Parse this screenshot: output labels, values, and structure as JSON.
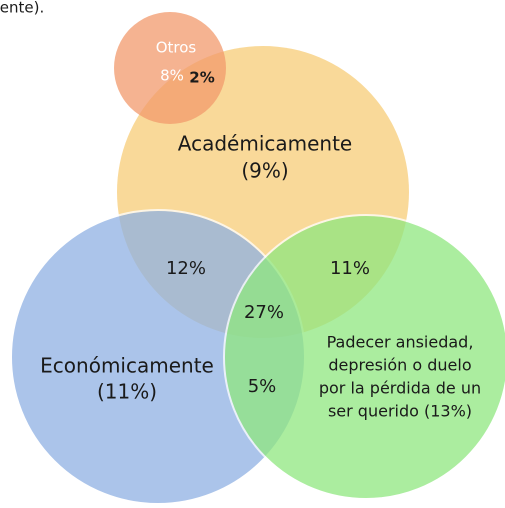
{
  "caption": "ente).",
  "sets": [
    {
      "label": [
        "Otros"
      ],
      "value": "8%"
    },
    {
      "label": [
        "Académicamente"
      ],
      "value": "(9%)"
    },
    {
      "label": [
        "Económicamente"
      ],
      "value": "(11%)"
    },
    {
      "label": [
        "Padecer ansiedad,",
        "depresión o duelo",
        "por la pérdida de un",
        "ser querido (13%)"
      ]
    }
  ],
  "overlaps": {
    "otros_academico": "2%",
    "academico_economico": "12%",
    "academico_salud": "11%",
    "todos": "27%",
    "economico_salud": "5%"
  }
}
